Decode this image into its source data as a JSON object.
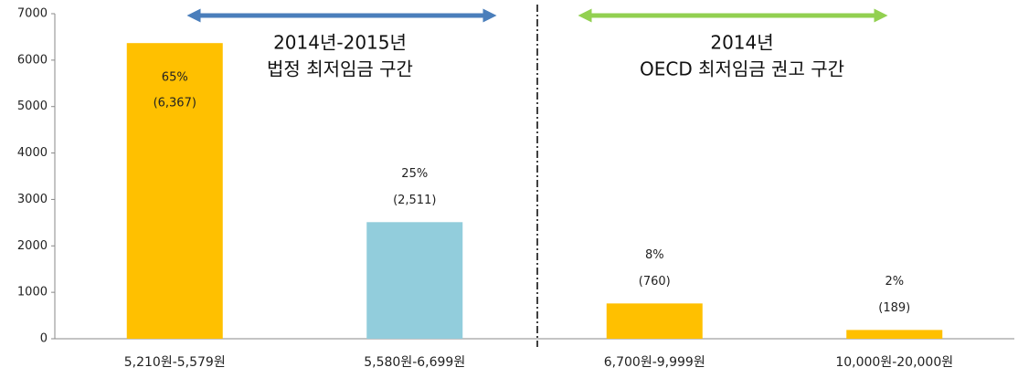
{
  "chart_data": {
    "type": "bar",
    "categories": [
      "5,210원-5,579원",
      "5,580원-6,699원",
      "6,700원-9,999원",
      "10,000원-20,000원"
    ],
    "values": [
      6367,
      2511,
      760,
      189
    ],
    "value_labels": [
      "(6,367)",
      "(2,511)",
      "(760)",
      "(189)"
    ],
    "shares": [
      "65%",
      "25%",
      "8%",
      "2%"
    ],
    "colors": [
      "#ffc000",
      "#92cddc",
      "#ffc000",
      "#ffc000"
    ],
    "ylim": [
      0,
      7000
    ],
    "yticks": [
      0,
      1000,
      2000,
      3000,
      4000,
      5000,
      6000,
      7000
    ],
    "grid": false,
    "annotations": [
      {
        "lines": [
          "2014년-2015년",
          "법정 최저임금 구간"
        ]
      },
      {
        "lines": [
          "2014년",
          "OECD 최저임금 권고 구간"
        ]
      }
    ]
  }
}
